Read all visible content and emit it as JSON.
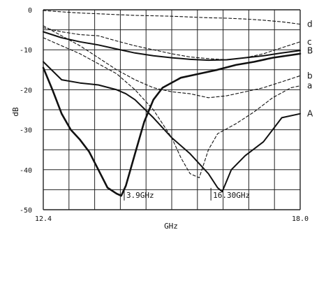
{
  "chart_data": {
    "type": "line",
    "xlabel": "GHz",
    "ylabel": "dB",
    "xlim": [
      12.4,
      18.0
    ],
    "ylim": [
      -50,
      0
    ],
    "x_tick_labels": [
      "12.4",
      "18.0"
    ],
    "y_ticks": [
      0,
      -10,
      -20,
      -30,
      -40,
      -50
    ],
    "y_tick_labels": [
      "0",
      "-10",
      "-20",
      "-30",
      "-40",
      "-50"
    ],
    "grid": true,
    "annotations": [
      {
        "text": "3.9GHz",
        "x": 14.21,
        "y": -47
      },
      {
        "text": "16.30GHz",
        "x": 16.1,
        "y": -47
      }
    ],
    "series": [
      {
        "name": "d",
        "style": "dashed",
        "x": [
          12.4,
          12.8,
          13.2,
          13.6,
          14.0,
          14.4,
          14.8,
          15.2,
          15.6,
          16.0,
          16.4,
          16.8,
          17.2,
          17.6,
          18.0
        ],
        "y": [
          -0.2,
          -0.5,
          -0.8,
          -1.0,
          -1.2,
          -1.4,
          -1.5,
          -1.6,
          -1.8,
          -2.0,
          -2.1,
          -2.3,
          -2.6,
          -3.0,
          -3.6
        ]
      },
      {
        "name": "c",
        "style": "dashed",
        "x": [
          12.4,
          12.8,
          13.2,
          13.6,
          14.0,
          14.4,
          14.8,
          15.2,
          15.6,
          16.0,
          16.4,
          16.8,
          17.2,
          17.6,
          18.0
        ],
        "y": [
          -4.5,
          -5.5,
          -6.2,
          -6.5,
          -7.8,
          -9.0,
          -10.0,
          -11.0,
          -11.8,
          -12.2,
          -12.5,
          -12.0,
          -11.0,
          -9.5,
          -8.0
        ]
      },
      {
        "name": "B",
        "style": "solid",
        "x": [
          12.4,
          12.8,
          13.2,
          13.6,
          14.0,
          14.4,
          14.8,
          15.2,
          15.6,
          16.0,
          16.4,
          16.8,
          17.2,
          17.6,
          18.0
        ],
        "y": [
          -5.5,
          -7.0,
          -8.0,
          -8.8,
          -9.8,
          -10.8,
          -11.5,
          -12.0,
          -12.4,
          -12.6,
          -12.5,
          -12.0,
          -11.5,
          -10.8,
          -10.2
        ]
      },
      {
        "name": "b",
        "style": "dashed",
        "x": [
          12.4,
          12.8,
          13.2,
          13.6,
          14.0,
          14.4,
          14.8,
          15.2,
          15.6,
          16.0,
          16.4,
          16.8,
          17.2,
          17.6,
          18.0
        ],
        "y": [
          -4.0,
          -6.5,
          -9.0,
          -12.0,
          -15.0,
          -17.5,
          -19.5,
          -20.5,
          -21.0,
          -22.0,
          -21.5,
          -20.5,
          -19.5,
          -18.0,
          -16.5
        ]
      },
      {
        "name": "a",
        "style": "dashed",
        "x": [
          12.4,
          12.8,
          13.2,
          13.6,
          14.0,
          14.4,
          14.8,
          15.2,
          15.4,
          15.6,
          15.8,
          16.0,
          16.2,
          16.6,
          17.0,
          17.4,
          17.8,
          18.0
        ],
        "y": [
          -7.0,
          -9.0,
          -11.0,
          -13.5,
          -16.0,
          -20.0,
          -25.0,
          -32.0,
          -37.0,
          -41.0,
          -42.0,
          -35.0,
          -31.0,
          -28.5,
          -25.5,
          -22.0,
          -19.5,
          -19.0
        ]
      },
      {
        "name": "A",
        "style": "solid",
        "x": [
          12.4,
          12.8,
          13.2,
          13.6,
          14.0,
          14.2,
          14.4,
          14.8,
          15.2,
          15.6,
          16.0,
          16.2,
          16.3,
          16.5,
          16.8,
          17.2,
          17.6,
          18.0
        ],
        "y": [
          -13.0,
          -17.5,
          -18.3,
          -18.8,
          -20.0,
          -21.0,
          -22.5,
          -27.0,
          -32.0,
          -36.0,
          -41.0,
          -44.5,
          -45.5,
          -40.0,
          -36.5,
          -33.0,
          -27.0,
          -26.0
        ]
      },
      {
        "name": "",
        "style": "bold",
        "x": [
          12.4,
          12.6,
          12.8,
          13.0,
          13.2,
          13.4,
          13.6,
          13.8,
          14.0,
          14.1,
          14.2,
          14.4,
          14.6,
          14.8,
          15.0,
          15.4,
          15.8,
          16.2,
          16.6,
          17.0,
          17.4,
          18.0
        ],
        "y": [
          -14.5,
          -20.0,
          -26.0,
          -30.0,
          -32.5,
          -35.5,
          -40.0,
          -44.5,
          -46.0,
          -46.5,
          -44.0,
          -36.0,
          -28.0,
          -22.5,
          -19.5,
          -17.0,
          -16.0,
          -15.0,
          -13.8,
          -13.0,
          -12.0,
          -11.0
        ]
      }
    ]
  }
}
